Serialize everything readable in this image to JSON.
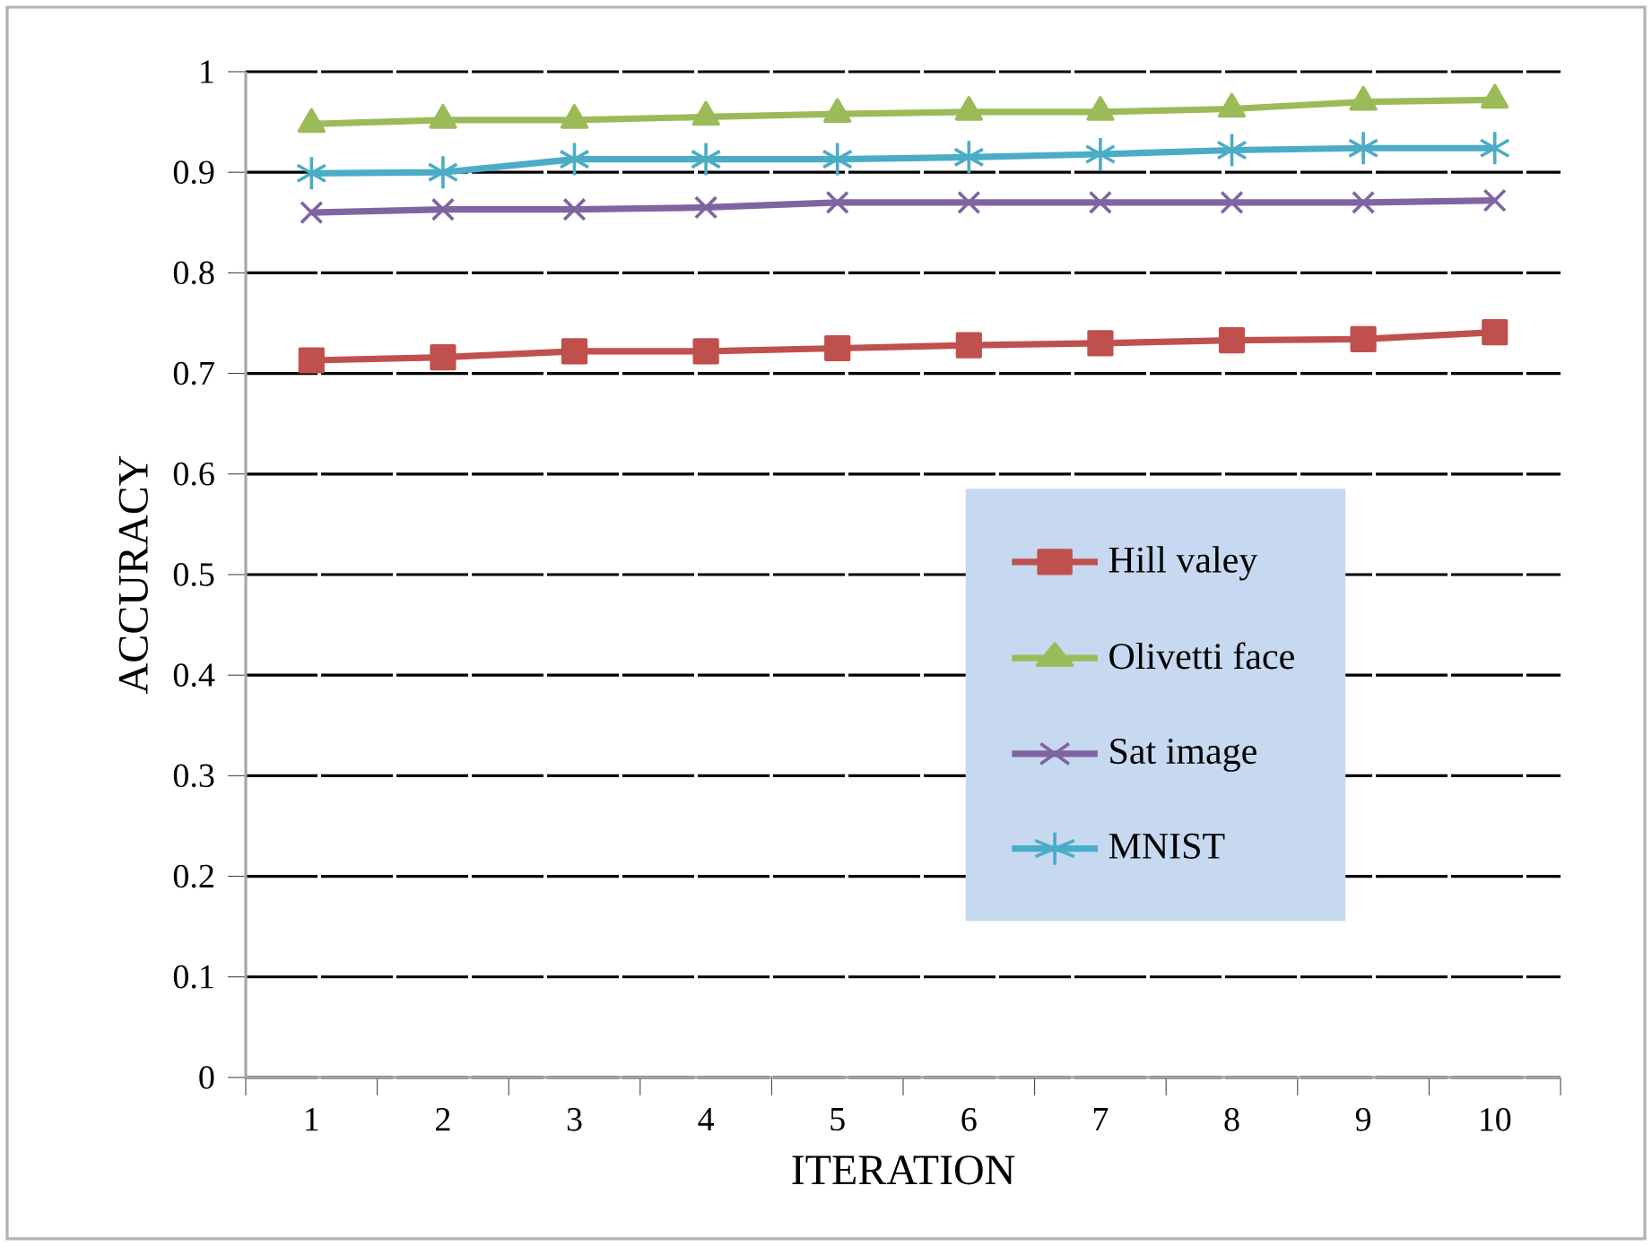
{
  "chart_data": {
    "type": "line",
    "xlabel": "ITERATION",
    "ylabel": "ACCURACY",
    "categories": [
      "1",
      "2",
      "3",
      "4",
      "5",
      "6",
      "7",
      "8",
      "9",
      "10"
    ],
    "series": [
      {
        "name": "Hill valey",
        "color": "#c0504d",
        "marker": "square",
        "values": [
          0.713,
          0.716,
          0.722,
          0.722,
          0.725,
          0.728,
          0.73,
          0.733,
          0.734,
          0.741
        ]
      },
      {
        "name": "Olivetti face",
        "color": "#9bbb59",
        "marker": "triangle",
        "values": [
          0.948,
          0.952,
          0.952,
          0.955,
          0.958,
          0.96,
          0.96,
          0.963,
          0.97,
          0.972
        ]
      },
      {
        "name": "Sat image",
        "color": "#8064a2",
        "marker": "cross",
        "values": [
          0.86,
          0.863,
          0.863,
          0.865,
          0.87,
          0.87,
          0.87,
          0.87,
          0.87,
          0.872
        ]
      },
      {
        "name": "MNIST",
        "color": "#4bacc6",
        "marker": "cross",
        "values": [
          0.899,
          0.9,
          0.913,
          0.913,
          0.913,
          0.915,
          0.918,
          0.922,
          0.924,
          0.924
        ]
      }
    ],
    "ylim": [
      0,
      1
    ],
    "yticks": [
      0,
      0.1,
      0.2,
      0.3,
      0.4,
      0.5,
      0.6,
      0.7,
      0.8,
      0.9,
      1
    ],
    "grid": "y",
    "legend": "right",
    "line_style": "solid"
  }
}
